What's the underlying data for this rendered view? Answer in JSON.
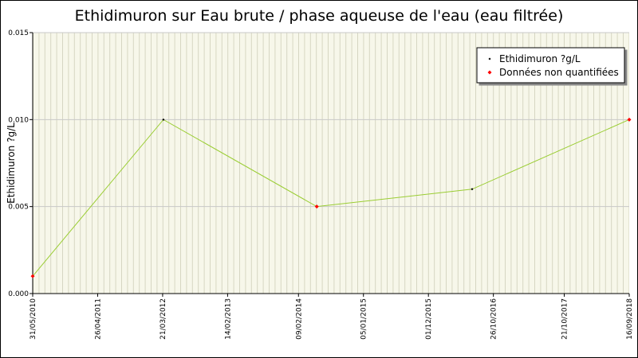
{
  "chart_data": {
    "type": "line",
    "title": "Ethidimuron sur Eau brute / phase aqueuse de l'eau (eau filtrée)",
    "y_label": "Ethidimuron ?g/L",
    "x": [
      "2010-05-31",
      "2012-03-25",
      "2014-05-13",
      "2016-07-10",
      "2018-09-16"
    ],
    "series": [
      {
        "name": "Ethidimuron ?g/L",
        "color": "#000000",
        "line_color": "#9acd32",
        "values": [
          0.001,
          0.01,
          0.005,
          0.006,
          0.01
        ]
      }
    ],
    "non_quantified": {
      "name": "Données non quantifiées",
      "color": "#ff0000",
      "flags": [
        true,
        false,
        true,
        false,
        true
      ]
    },
    "xlim": [
      "2010-05-31",
      "2018-09-16"
    ],
    "xticks": [
      {
        "value": "2010-05-31",
        "label": "31/05/2010"
      },
      {
        "value": "2011-04-26",
        "label": "26/04/2011"
      },
      {
        "value": "2012-03-21",
        "label": "21/03/2012"
      },
      {
        "value": "2013-02-14",
        "label": "14/02/2013"
      },
      {
        "value": "2014-02-09",
        "label": "09/02/2014"
      },
      {
        "value": "2015-01-05",
        "label": "05/01/2015"
      },
      {
        "value": "2015-12-01",
        "label": "01/12/2015"
      },
      {
        "value": "2016-10-26",
        "label": "26/10/2016"
      },
      {
        "value": "2017-10-21",
        "label": "21/10/2017"
      },
      {
        "value": "2018-09-16",
        "label": "16/09/2018"
      }
    ],
    "ylim": [
      0,
      0.015
    ],
    "yticks": [
      {
        "value": 0,
        "label": "0.000"
      },
      {
        "value": 0.005,
        "label": "0.005"
      },
      {
        "value": 0.01,
        "label": "0.010"
      },
      {
        "value": 0.015,
        "label": "0.015"
      }
    ],
    "grid": true
  }
}
